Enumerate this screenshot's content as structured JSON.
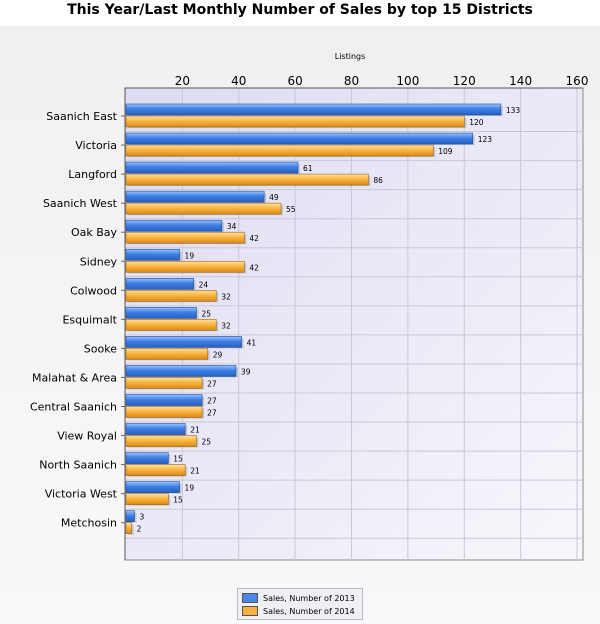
{
  "chart_data": {
    "type": "bar",
    "orientation": "horizontal",
    "title": "This Year/Last Monthly Number of Sales by top 15 Districts",
    "xlabel": "Listings",
    "ylabel": "",
    "xlim": [
      0,
      160
    ],
    "xticks": [
      "20",
      "40",
      "60",
      "80",
      "100",
      "120",
      "140",
      "160"
    ],
    "grid": true,
    "legend_position": "bottom-center",
    "categories": [
      "Saanich East",
      "Victoria",
      "Langford",
      "Saanich West",
      "Oak Bay",
      "Sidney",
      "Colwood",
      "Esquimalt",
      "Sooke",
      "Malahat & Area",
      "Central Saanich",
      "View Royal",
      "North Saanich",
      "Victoria West",
      "Metchosin"
    ],
    "series": [
      {
        "name": "Sales, Number of 2013",
        "color": "#4a86e8",
        "values": [
          133,
          123,
          61,
          49,
          34,
          19,
          24,
          25,
          41,
          39,
          27,
          21,
          15,
          19,
          3
        ]
      },
      {
        "name": "Sales, Number of 2014",
        "color": "#f5b041",
        "values": [
          120,
          109,
          86,
          55,
          42,
          42,
          32,
          32,
          29,
          27,
          27,
          25,
          21,
          15,
          2
        ]
      }
    ]
  }
}
